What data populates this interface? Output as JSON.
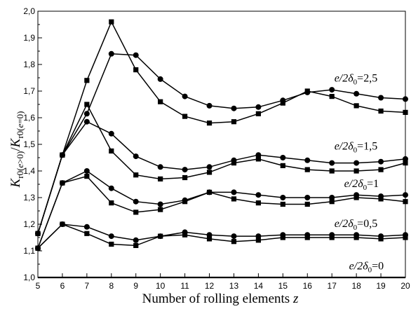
{
  "chart_data": {
    "type": "line",
    "title": "",
    "xlabel": "Number of rolling elements z",
    "ylabel": "Kr0(e>0)/Kr0(e=0)",
    "xlim": [
      5,
      20
    ],
    "ylim": [
      1.0,
      2.0
    ],
    "x_ticks": [
      "5",
      "6",
      "7",
      "8",
      "9",
      "10",
      "11",
      "12",
      "13",
      "14",
      "15",
      "16",
      "17",
      "18",
      "19",
      "20"
    ],
    "y_ticks": [
      "1,0",
      "1,1",
      "1,2",
      "1,3",
      "1,4",
      "1,5",
      "1,6",
      "1,7",
      "1,8",
      "1,9",
      "2,0"
    ],
    "grid": false,
    "legend": "none",
    "x": [
      5,
      6,
      7,
      8,
      9,
      10,
      11,
      12,
      13,
      14,
      15,
      16,
      17,
      18,
      19,
      20
    ],
    "series": [
      {
        "marker": "circle",
        "group": "e/2δ0=0.5",
        "values": [
          1.11,
          1.2,
          1.19,
          1.155,
          1.14,
          1.155,
          1.17,
          1.16,
          1.155,
          1.155,
          1.16,
          1.16,
          1.16,
          1.16,
          1.155,
          1.16
        ]
      },
      {
        "marker": "square",
        "group": "e/2δ0=0.5",
        "values": [
          1.11,
          1.2,
          1.165,
          1.125,
          1.12,
          1.155,
          1.16,
          1.145,
          1.135,
          1.14,
          1.15,
          1.15,
          1.15,
          1.15,
          1.145,
          1.15
        ]
      },
      {
        "marker": "circle",
        "group": "e/2δ0=1",
        "values": [
          1.11,
          1.355,
          1.4,
          1.335,
          1.285,
          1.275,
          1.29,
          1.32,
          1.32,
          1.31,
          1.3,
          1.3,
          1.3,
          1.31,
          1.305,
          1.31
        ]
      },
      {
        "marker": "square",
        "group": "e/2δ0=1",
        "values": [
          1.11,
          1.355,
          1.38,
          1.28,
          1.245,
          1.255,
          1.285,
          1.32,
          1.295,
          1.28,
          1.275,
          1.275,
          1.285,
          1.3,
          1.295,
          1.285
        ]
      },
      {
        "marker": "circle",
        "group": "e/2δ0=1.5",
        "values": [
          1.165,
          1.46,
          1.585,
          1.54,
          1.455,
          1.415,
          1.405,
          1.415,
          1.44,
          1.46,
          1.45,
          1.44,
          1.43,
          1.43,
          1.435,
          1.445
        ]
      },
      {
        "marker": "square",
        "group": "e/2δ0=1.5",
        "values": [
          1.165,
          1.46,
          1.65,
          1.475,
          1.385,
          1.37,
          1.375,
          1.395,
          1.43,
          1.445,
          1.42,
          1.405,
          1.4,
          1.4,
          1.405,
          1.43
        ]
      },
      {
        "marker": "circle",
        "group": "e/2δ0=2.5",
        "values": [
          1.165,
          1.46,
          1.615,
          1.84,
          1.835,
          1.745,
          1.68,
          1.645,
          1.635,
          1.64,
          1.665,
          1.695,
          1.705,
          1.69,
          1.675,
          1.67
        ]
      },
      {
        "marker": "square",
        "group": "e/2δ0=2.5",
        "values": [
          1.165,
          1.46,
          1.74,
          1.96,
          1.78,
          1.66,
          1.605,
          1.58,
          1.585,
          1.615,
          1.655,
          1.7,
          1.68,
          1.645,
          1.625,
          1.62
        ]
      },
      {
        "marker": "none",
        "group": "e/2δ0=0",
        "values": [
          1.0,
          1.0,
          1.0,
          1.0,
          1.0,
          1.0,
          1.0,
          1.0,
          1.0,
          1.0,
          1.0,
          1.0,
          1.0,
          1.0,
          1.0,
          1.0
        ]
      }
    ],
    "annotations": [
      {
        "text": "e/2δ0=2,5",
        "x": 17.1,
        "y": 1.735
      },
      {
        "text": "e/2δ0=1,5",
        "x": 17.1,
        "y": 1.48
      },
      {
        "text": "e/2δ0=1",
        "x": 17.5,
        "y": 1.34
      },
      {
        "text": "e/2δ0=0,5",
        "x": 17.1,
        "y": 1.19
      },
      {
        "text": "e/2δ0=0",
        "x": 17.7,
        "y": 1.03
      }
    ]
  }
}
